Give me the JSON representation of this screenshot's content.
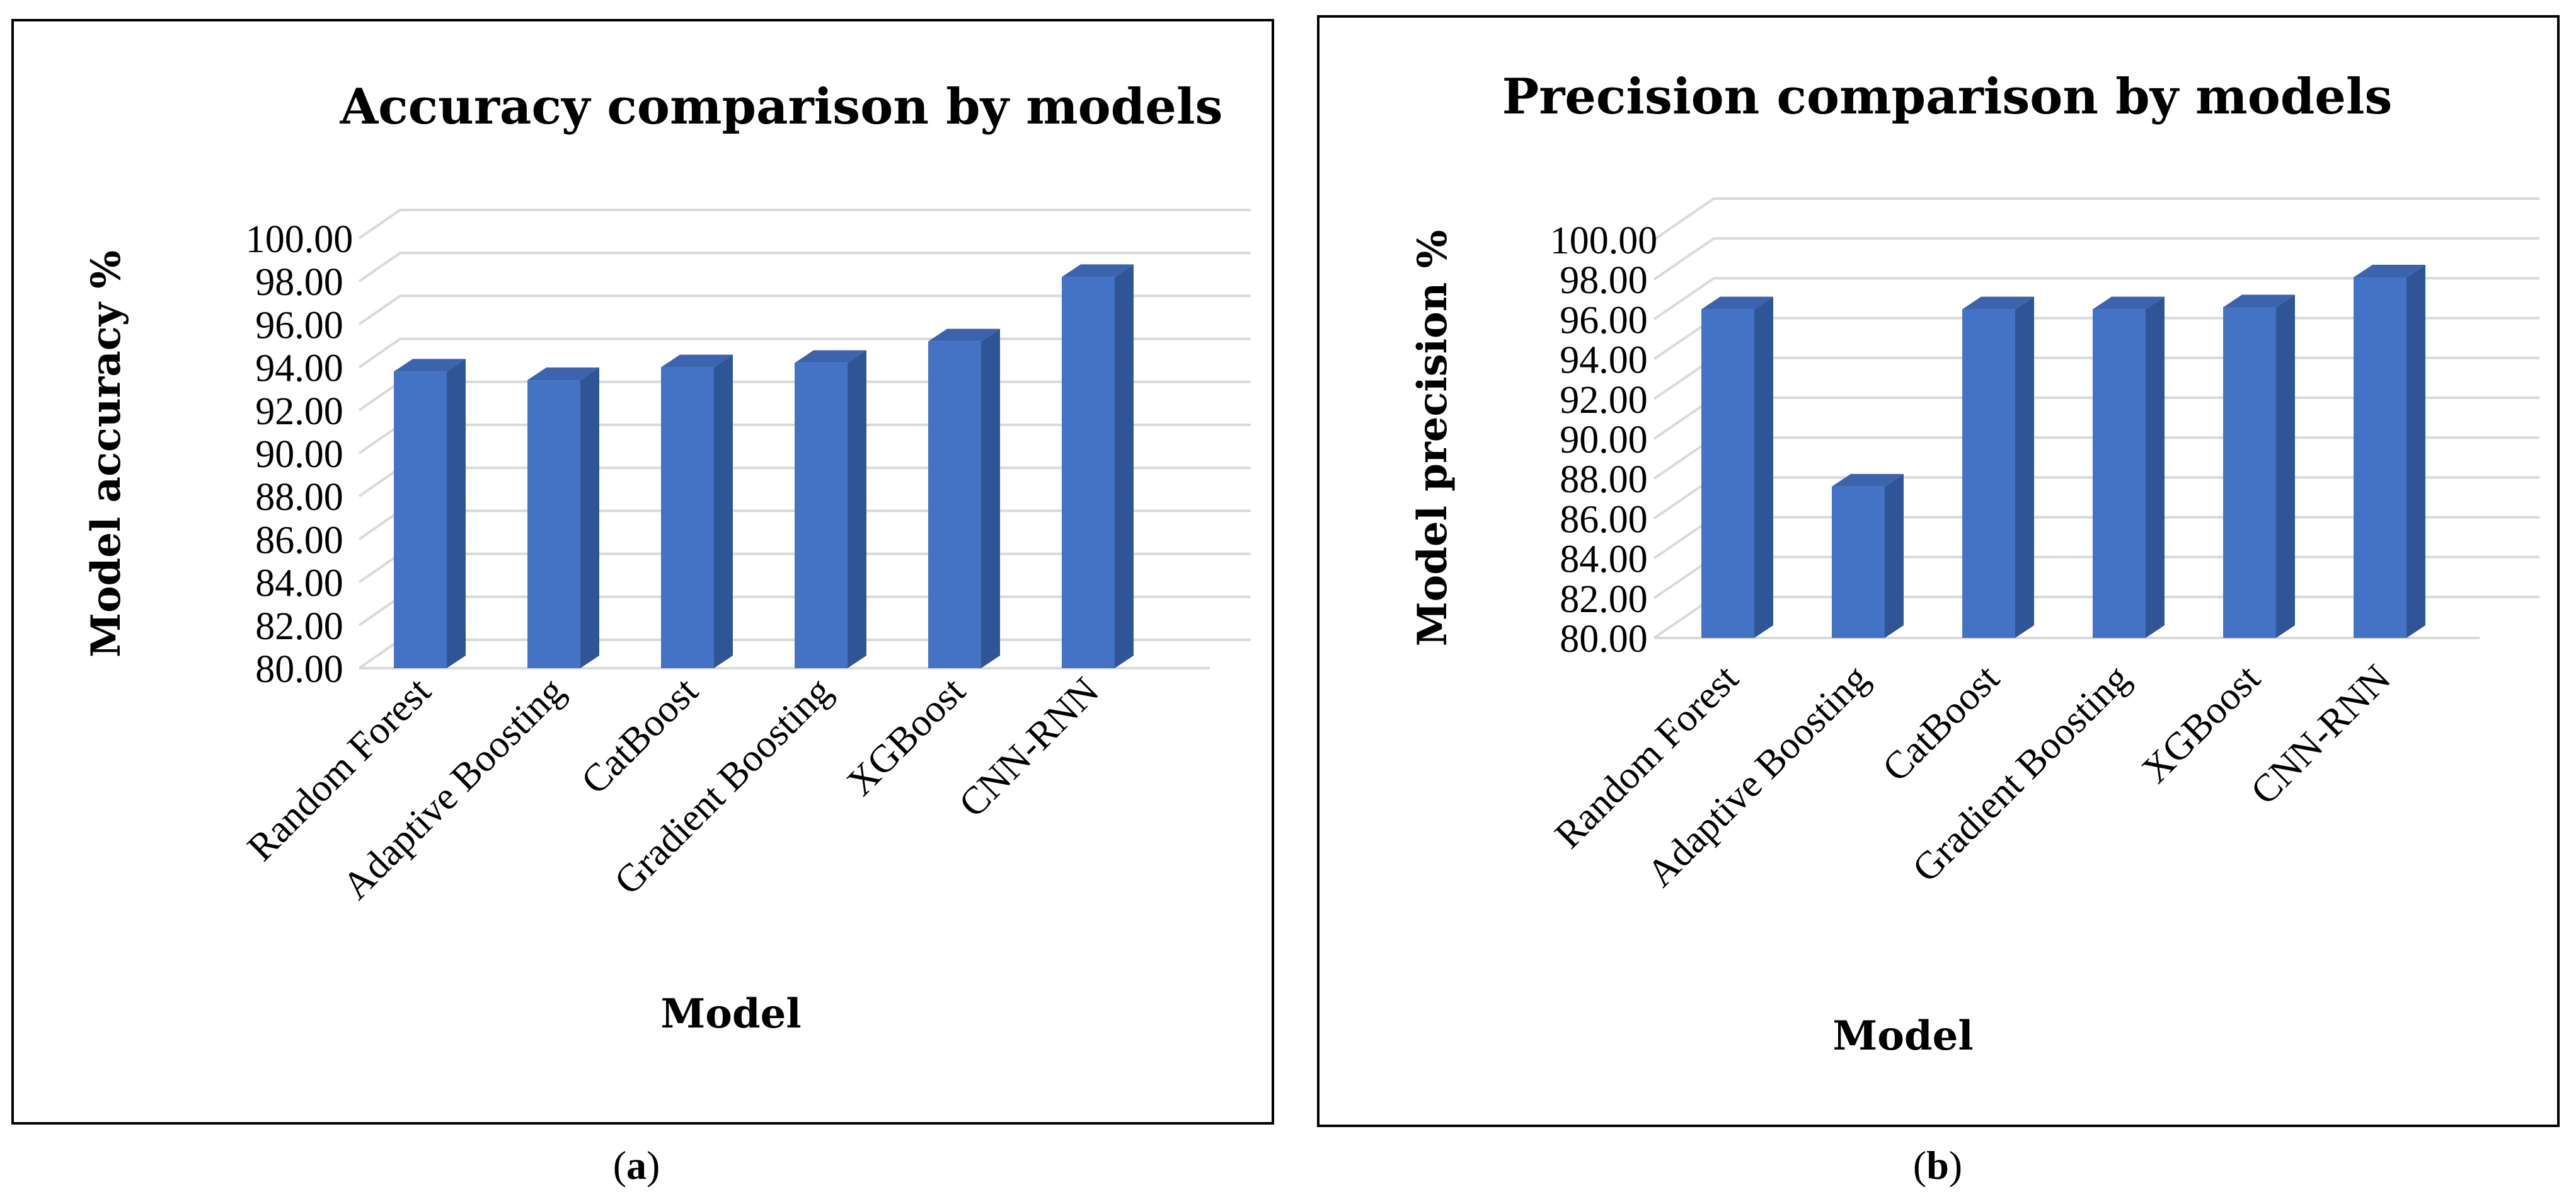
{
  "colors": {
    "bar_front": "#4472C4",
    "bar_side": "#2F5597",
    "bar_top": "#3C63AE",
    "grid": "#D9D9D9",
    "frame": "#000000"
  },
  "panels": [
    {
      "label": "a"
    },
    {
      "label": "b"
    }
  ],
  "chart_data": [
    {
      "type": "bar",
      "title": "Accuracy comparison by models",
      "xlabel": "Model",
      "ylabel": "Model accuracy %",
      "ylim": [
        80,
        100
      ],
      "yticks": [
        "80.00",
        "82.00",
        "84.00",
        "86.00",
        "88.00",
        "90.00",
        "92.00",
        "94.00",
        "96.00",
        "98.00",
        "100.00"
      ],
      "categories": [
        "Random Forest",
        "Adaptive Boosting",
        "CatBoost",
        "Gradient Boosting",
        "XGBoost",
        "CNN-RNN"
      ],
      "values": [
        93.8,
        93.4,
        94.0,
        94.2,
        95.2,
        98.2
      ]
    },
    {
      "type": "bar",
      "title": "Precision comparison by models",
      "xlabel": "Model",
      "ylabel": "Model precision %",
      "ylim": [
        80,
        100
      ],
      "yticks": [
        "80.00",
        "82.00",
        "84.00",
        "86.00",
        "88.00",
        "90.00",
        "92.00",
        "94.00",
        "96.00",
        "98.00",
        "100.00"
      ],
      "categories": [
        "Random Forest",
        "Adaptive Boosting",
        "CatBoost",
        "Gradient Boosting",
        "XGBoost",
        "CNN-RNN"
      ],
      "values": [
        96.5,
        87.6,
        96.5,
        96.5,
        96.6,
        98.1
      ]
    }
  ]
}
